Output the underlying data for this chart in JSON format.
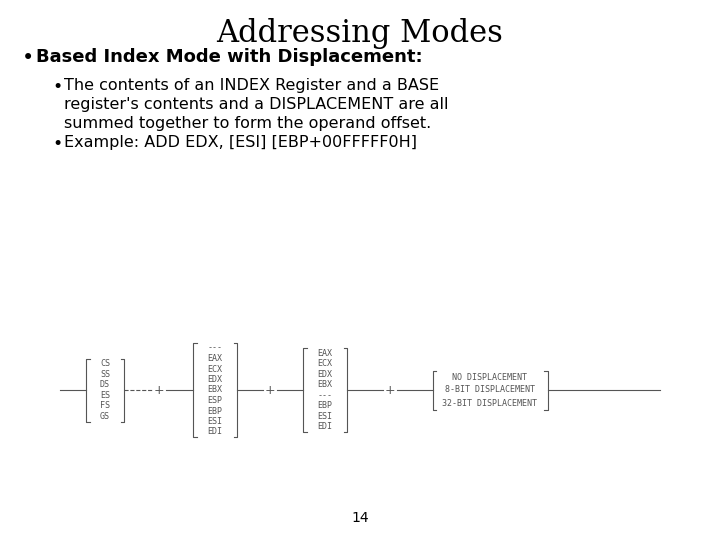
{
  "title": "Addressing Modes",
  "bullet1": "Based Index Mode with Displacement:",
  "bullet2_line1": "The contents of an INDEX Register and a BASE",
  "bullet2_line2": "register's contents and a DISPLACEMENT are all",
  "bullet2_line3": "summed together to form the operand offset.",
  "bullet3": "Example: ADD EDX, [ESI] [EBP+00FFFFF0H]",
  "page_number": "14",
  "bg_color": "#ffffff",
  "text_color": "#000000",
  "diag_color": "#555555",
  "box1_items": [
    "CS",
    "SS",
    "DS",
    "ES",
    "FS",
    "GS"
  ],
  "box2_items": [
    "---",
    "EAX",
    "ECX",
    "EDX",
    "EBX",
    "ESP",
    "EBP",
    "ESI",
    "EDI"
  ],
  "box3_items": [
    "EAX",
    "ECX",
    "EDX",
    "EBX",
    "---",
    "EBP",
    "ESI",
    "EDI"
  ],
  "box4_items": [
    "NO DISPLACEMENT",
    "8-BIT DISPLACEMENT",
    "32-BIT DISPLACEMENT"
  ],
  "title_fontsize": 22,
  "bullet1_fontsize": 13,
  "bullet2_fontsize": 11.5,
  "mono_fontsize": 6.0,
  "page_fontsize": 10
}
